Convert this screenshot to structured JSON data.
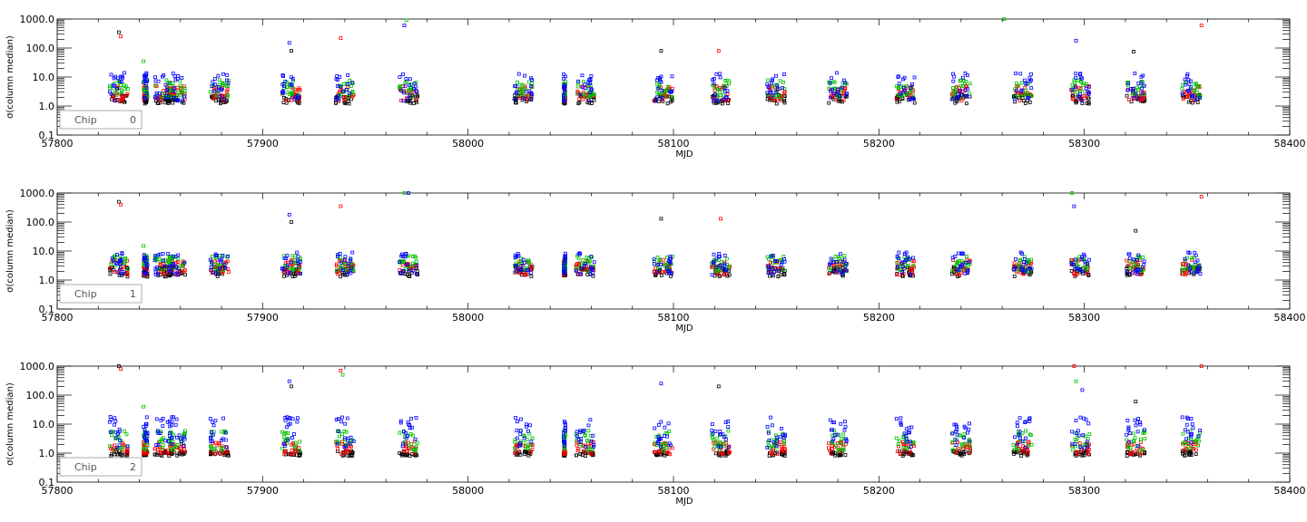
{
  "chart_data": [
    {
      "type": "scatter",
      "panel": "chip-0",
      "xlabel": "MJD",
      "ylabel": "σ(column median)",
      "yscale": "log",
      "xlim": [
        57800,
        58400
      ],
      "ylim": [
        0.1,
        1000
      ],
      "xticks": [
        57800,
        57900,
        58000,
        58100,
        58200,
        58300,
        58400
      ],
      "xtick_labels": [
        "57800",
        "57900",
        "58000",
        "58100",
        "58200",
        "58300",
        "58400"
      ],
      "yticks": [
        0.1,
        1,
        10,
        100,
        1000
      ],
      "ytick_labels": [
        "0.1",
        "1.0",
        "10.0",
        "100.0",
        "1000.0"
      ],
      "legend": {
        "label": "Chip",
        "value": "0",
        "placement": "bottom-left"
      },
      "series_colors": [
        "#000000",
        "#ff0000",
        "#00c000",
        "#0000ff"
      ],
      "bands": {
        "black": [
          1.2,
          2.5
        ],
        "red": [
          1.5,
          5.0
        ],
        "green": [
          2.0,
          8.0
        ],
        "blue": [
          1.5,
          14.0
        ]
      },
      "epochs": [
        57830,
        57843,
        57852,
        57858,
        57879,
        57914,
        57940,
        57971,
        58027,
        58047,
        58057,
        58095,
        58123,
        58150,
        58180,
        58213,
        58240,
        58270,
        58298,
        58325,
        58352
      ],
      "outliers": [
        {
          "x": 57830,
          "y": 350
        },
        {
          "x": 57831,
          "y": 250
        },
        {
          "x": 57842,
          "y": 35
        },
        {
          "x": 57913,
          "y": 150
        },
        {
          "x": 57914,
          "y": 80
        },
        {
          "x": 57938,
          "y": 220
        },
        {
          "x": 57970,
          "y": 900
        },
        {
          "x": 57969,
          "y": 600
        },
        {
          "x": 58094,
          "y": 80
        },
        {
          "x": 58122,
          "y": 80
        },
        {
          "x": 58261,
          "y": 1000
        },
        {
          "x": 58296,
          "y": 180
        },
        {
          "x": 58324,
          "y": 75
        },
        {
          "x": 58357,
          "y": 600
        }
      ]
    },
    {
      "type": "scatter",
      "panel": "chip-1",
      "xlabel": "MJD",
      "ylabel": "σ(column median)",
      "yscale": "log",
      "xlim": [
        57800,
        58400
      ],
      "ylim": [
        0.1,
        1000
      ],
      "xticks": [
        57800,
        57900,
        58000,
        58100,
        58200,
        58300,
        58400
      ],
      "xtick_labels": [
        "57800",
        "57900",
        "58000",
        "58100",
        "58200",
        "58300",
        "58400"
      ],
      "yticks": [
        0.1,
        1,
        10,
        100,
        1000
      ],
      "ytick_labels": [
        "0.1",
        "1.0",
        "10.0",
        "100.0",
        "1000.0"
      ],
      "legend": {
        "label": "Chip",
        "value": "1",
        "placement": "bottom-left"
      },
      "series_colors": [
        "#000000",
        "#ff0000",
        "#00c000",
        "#0000ff"
      ],
      "bands": {
        "black": [
          1.3,
          3.0
        ],
        "red": [
          1.5,
          5.0
        ],
        "green": [
          2.0,
          7.0
        ],
        "blue": [
          1.5,
          9.0
        ]
      },
      "epochs": [
        57830,
        57843,
        57852,
        57858,
        57879,
        57914,
        57940,
        57971,
        58027,
        58047,
        58057,
        58095,
        58123,
        58150,
        58180,
        58213,
        58240,
        58270,
        58298,
        58325,
        58352
      ],
      "outliers": [
        {
          "x": 57830,
          "y": 500
        },
        {
          "x": 57831,
          "y": 400
        },
        {
          "x": 57842,
          "y": 15
        },
        {
          "x": 57913,
          "y": 180
        },
        {
          "x": 57914,
          "y": 100
        },
        {
          "x": 57938,
          "y": 350
        },
        {
          "x": 57969,
          "y": 1000
        },
        {
          "x": 57971,
          "y": 1000
        },
        {
          "x": 58094,
          "y": 130
        },
        {
          "x": 58123,
          "y": 130
        },
        {
          "x": 58294,
          "y": 1000
        },
        {
          "x": 58295,
          "y": 350
        },
        {
          "x": 58325,
          "y": 50
        },
        {
          "x": 58357,
          "y": 750
        }
      ]
    },
    {
      "type": "scatter",
      "panel": "chip-2",
      "xlabel": "MJD",
      "ylabel": "σ(column median)",
      "yscale": "log",
      "xlim": [
        57800,
        58400
      ],
      "ylim": [
        0.1,
        1000
      ],
      "xticks": [
        57800,
        57900,
        58000,
        58100,
        58200,
        58300,
        58400
      ],
      "xtick_labels": [
        "57800",
        "57900",
        "58000",
        "58100",
        "58200",
        "58300",
        "58400"
      ],
      "yticks": [
        0.1,
        1,
        10,
        100,
        1000
      ],
      "ytick_labels": [
        "0.1",
        "1.0",
        "10.0",
        "100.0",
        "1000.0"
      ],
      "legend": {
        "label": "Chip",
        "value": "2",
        "placement": "bottom-left"
      },
      "series_colors": [
        "#000000",
        "#ff0000",
        "#00c000",
        "#0000ff"
      ],
      "bands": {
        "black": [
          0.8,
          1.2
        ],
        "red": [
          0.9,
          2.5
        ],
        "green": [
          1.2,
          6.0
        ],
        "blue": [
          1.5,
          18.0
        ]
      },
      "epochs": [
        57830,
        57843,
        57852,
        57858,
        57879,
        57914,
        57940,
        57971,
        58027,
        58047,
        58057,
        58095,
        58123,
        58150,
        58180,
        58213,
        58240,
        58270,
        58298,
        58325,
        58352
      ],
      "outliers": [
        {
          "x": 57830,
          "y": 1000
        },
        {
          "x": 57831,
          "y": 800
        },
        {
          "x": 57842,
          "y": 40
        },
        {
          "x": 57913,
          "y": 300
        },
        {
          "x": 57914,
          "y": 200
        },
        {
          "x": 57938,
          "y": 700
        },
        {
          "x": 57939,
          "y": 500
        },
        {
          "x": 58094,
          "y": 250
        },
        {
          "x": 58122,
          "y": 200
        },
        {
          "x": 58295,
          "y": 1000
        },
        {
          "x": 58296,
          "y": 300
        },
        {
          "x": 58299,
          "y": 150
        },
        {
          "x": 58325,
          "y": 60
        },
        {
          "x": 58357,
          "y": 1000
        }
      ]
    }
  ]
}
